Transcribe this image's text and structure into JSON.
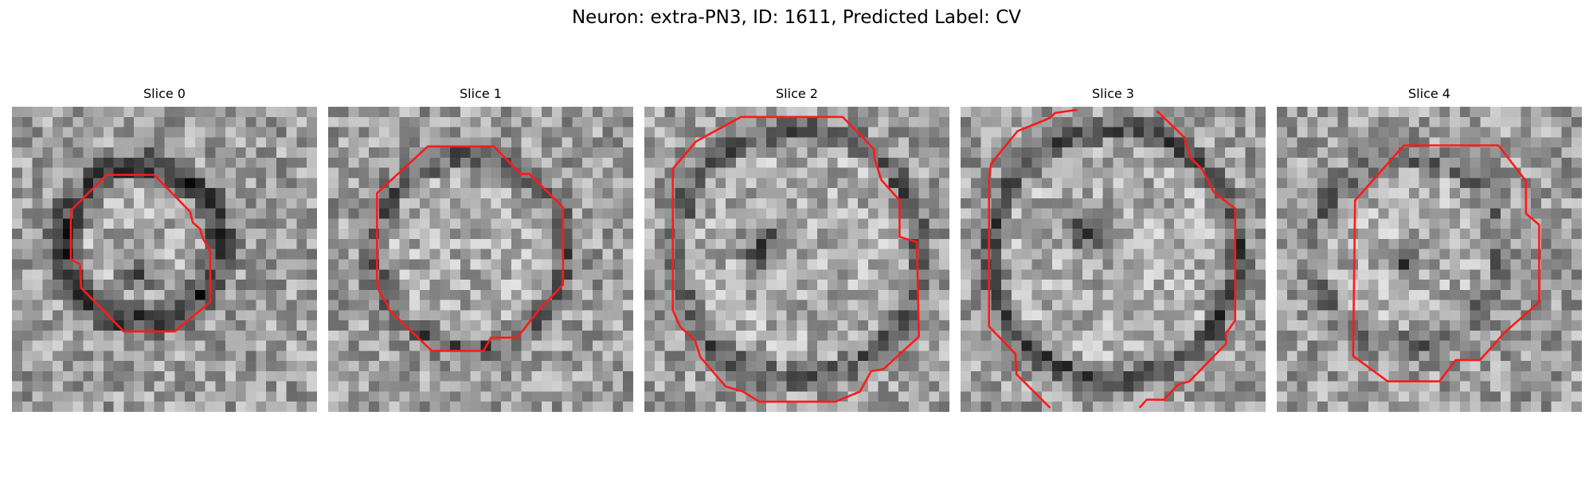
{
  "figure": {
    "title": "Neuron: extra-PN3, ID: 1611, Predicted Label: CV",
    "contour_color": "#ff1a1a"
  },
  "panels": [
    {
      "title": "Slice 0"
    },
    {
      "title": "Slice 1"
    },
    {
      "title": "Slice 2"
    },
    {
      "title": "Slice 3"
    },
    {
      "title": "Slice 4"
    }
  ]
}
